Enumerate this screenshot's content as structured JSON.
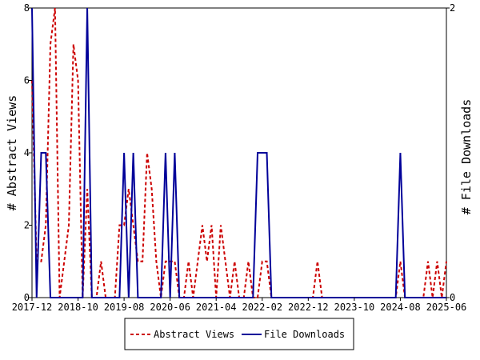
{
  "chart_data": {
    "type": "line",
    "x_start": "2017-12",
    "x_end": "2025-06",
    "x_ticks": [
      "2017-12",
      "2018-10",
      "2019-08",
      "2020-06",
      "2021-04",
      "2022-02",
      "2022-12",
      "2023-10",
      "2024-08",
      "2025-06"
    ],
    "y_left": {
      "label": "# Abstract Views",
      "min": 0,
      "max": 8,
      "ticks": [
        "0",
        "2",
        "4",
        "6",
        "8"
      ]
    },
    "y_right": {
      "label": "# File Downloads",
      "min": 0,
      "max": 2,
      "ticks": [
        "0",
        "2"
      ]
    },
    "legend": {
      "placement": "bottom"
    },
    "series": [
      {
        "name": "Abstract Views",
        "axis": "left",
        "color": "#cc0000",
        "style": "dashed",
        "points": [
          [
            "2017-12",
            6
          ],
          [
            "2018-01",
            1
          ],
          [
            "2018-02",
            1
          ],
          [
            "2018-03",
            2
          ],
          [
            "2018-04",
            7
          ],
          [
            "2018-05",
            8
          ],
          [
            "2018-06",
            0
          ],
          [
            "2018-07",
            1
          ],
          [
            "2018-08",
            2
          ],
          [
            "2018-09",
            7
          ],
          [
            "2018-10",
            6
          ],
          [
            "2018-11",
            0
          ],
          [
            "2018-12",
            3
          ],
          [
            "2019-01",
            0
          ],
          [
            "2019-02",
            0
          ],
          [
            "2019-03",
            1
          ],
          [
            "2019-04",
            0
          ],
          [
            "2019-05",
            0
          ],
          [
            "2019-06",
            0
          ],
          [
            "2019-07",
            2
          ],
          [
            "2019-08",
            2
          ],
          [
            "2019-09",
            3
          ],
          [
            "2019-10",
            2
          ],
          [
            "2019-11",
            1
          ],
          [
            "2019-12",
            1
          ],
          [
            "2020-01",
            4
          ],
          [
            "2020-02",
            3
          ],
          [
            "2020-03",
            1
          ],
          [
            "2020-04",
            0
          ],
          [
            "2020-05",
            1
          ],
          [
            "2020-06",
            1
          ],
          [
            "2020-07",
            1
          ],
          [
            "2020-08",
            0
          ],
          [
            "2020-09",
            0
          ],
          [
            "2020-10",
            1
          ],
          [
            "2020-11",
            0
          ],
          [
            "2020-12",
            1
          ],
          [
            "2021-01",
            2
          ],
          [
            "2021-02",
            1
          ],
          [
            "2021-03",
            2
          ],
          [
            "2021-04",
            0
          ],
          [
            "2021-05",
            2
          ],
          [
            "2021-06",
            1
          ],
          [
            "2021-07",
            0
          ],
          [
            "2021-08",
            1
          ],
          [
            "2021-09",
            0
          ],
          [
            "2021-10",
            0
          ],
          [
            "2021-11",
            1
          ],
          [
            "2021-12",
            0
          ],
          [
            "2022-01",
            0
          ],
          [
            "2022-02",
            1
          ],
          [
            "2022-03",
            1
          ],
          [
            "2022-04",
            0
          ],
          [
            "2022-05",
            0
          ],
          [
            "2022-06",
            0
          ],
          [
            "2022-07",
            0
          ],
          [
            "2022-08",
            0
          ],
          [
            "2022-09",
            0
          ],
          [
            "2022-10",
            0
          ],
          [
            "2022-11",
            0
          ],
          [
            "2022-12",
            0
          ],
          [
            "2023-01",
            0
          ],
          [
            "2023-02",
            1
          ],
          [
            "2023-03",
            0
          ],
          [
            "2023-04",
            0
          ],
          [
            "2023-05",
            0
          ],
          [
            "2023-06",
            0
          ],
          [
            "2023-07",
            0
          ],
          [
            "2023-08",
            0
          ],
          [
            "2023-09",
            0
          ],
          [
            "2023-10",
            0
          ],
          [
            "2023-11",
            0
          ],
          [
            "2023-12",
            0
          ],
          [
            "2024-01",
            0
          ],
          [
            "2024-02",
            0
          ],
          [
            "2024-03",
            0
          ],
          [
            "2024-04",
            0
          ],
          [
            "2024-05",
            0
          ],
          [
            "2024-06",
            0
          ],
          [
            "2024-07",
            0
          ],
          [
            "2024-08",
            1
          ],
          [
            "2024-09",
            0
          ],
          [
            "2024-10",
            0
          ],
          [
            "2024-11",
            0
          ],
          [
            "2024-12",
            0
          ],
          [
            "2025-01",
            0
          ],
          [
            "2025-02",
            1
          ],
          [
            "2025-03",
            0
          ],
          [
            "2025-04",
            1
          ],
          [
            "2025-05",
            0
          ],
          [
            "2025-06",
            1
          ]
        ]
      },
      {
        "name": "File Downloads",
        "axis": "right",
        "color": "#000099",
        "style": "solid",
        "points": [
          [
            "2017-12",
            2
          ],
          [
            "2018-01",
            0
          ],
          [
            "2018-02",
            1
          ],
          [
            "2018-03",
            1
          ],
          [
            "2018-04",
            0
          ],
          [
            "2018-05",
            0
          ],
          [
            "2018-06",
            0
          ],
          [
            "2018-07",
            0
          ],
          [
            "2018-08",
            0
          ],
          [
            "2018-09",
            0
          ],
          [
            "2018-10",
            0
          ],
          [
            "2018-11",
            0
          ],
          [
            "2018-12",
            2
          ],
          [
            "2019-01",
            0
          ],
          [
            "2019-02",
            0
          ],
          [
            "2019-03",
            0
          ],
          [
            "2019-04",
            0
          ],
          [
            "2019-05",
            0
          ],
          [
            "2019-06",
            0
          ],
          [
            "2019-07",
            0
          ],
          [
            "2019-08",
            1
          ],
          [
            "2019-09",
            0
          ],
          [
            "2019-10",
            1
          ],
          [
            "2019-11",
            0
          ],
          [
            "2019-12",
            0
          ],
          [
            "2020-01",
            0
          ],
          [
            "2020-02",
            0
          ],
          [
            "2020-03",
            0
          ],
          [
            "2020-04",
            0
          ],
          [
            "2020-05",
            1
          ],
          [
            "2020-06",
            0
          ],
          [
            "2020-07",
            1
          ],
          [
            "2020-08",
            0
          ],
          [
            "2020-09",
            0
          ],
          [
            "2020-10",
            0
          ],
          [
            "2020-11",
            0
          ],
          [
            "2020-12",
            0
          ],
          [
            "2021-01",
            0
          ],
          [
            "2021-02",
            0
          ],
          [
            "2021-03",
            0
          ],
          [
            "2021-04",
            0
          ],
          [
            "2021-05",
            0
          ],
          [
            "2021-06",
            0
          ],
          [
            "2021-07",
            0
          ],
          [
            "2021-08",
            0
          ],
          [
            "2021-09",
            0
          ],
          [
            "2021-10",
            0
          ],
          [
            "2021-11",
            0
          ],
          [
            "2021-12",
            0
          ],
          [
            "2022-01",
            1
          ],
          [
            "2022-02",
            1
          ],
          [
            "2022-03",
            1
          ],
          [
            "2022-04",
            0
          ],
          [
            "2022-05",
            0
          ],
          [
            "2022-06",
            0
          ],
          [
            "2022-07",
            0
          ],
          [
            "2022-08",
            0
          ],
          [
            "2022-09",
            0
          ],
          [
            "2022-10",
            0
          ],
          [
            "2022-11",
            0
          ],
          [
            "2022-12",
            0
          ],
          [
            "2023-01",
            0
          ],
          [
            "2023-02",
            0
          ],
          [
            "2023-03",
            0
          ],
          [
            "2023-04",
            0
          ],
          [
            "2023-05",
            0
          ],
          [
            "2023-06",
            0
          ],
          [
            "2023-07",
            0
          ],
          [
            "2023-08",
            0
          ],
          [
            "2023-09",
            0
          ],
          [
            "2023-10",
            0
          ],
          [
            "2023-11",
            0
          ],
          [
            "2023-12",
            0
          ],
          [
            "2024-01",
            0
          ],
          [
            "2024-02",
            0
          ],
          [
            "2024-03",
            0
          ],
          [
            "2024-04",
            0
          ],
          [
            "2024-05",
            0
          ],
          [
            "2024-06",
            0
          ],
          [
            "2024-07",
            0
          ],
          [
            "2024-08",
            1
          ],
          [
            "2024-09",
            0
          ],
          [
            "2024-10",
            0
          ],
          [
            "2024-11",
            0
          ],
          [
            "2024-12",
            0
          ],
          [
            "2025-01",
            0
          ],
          [
            "2025-02",
            0
          ],
          [
            "2025-03",
            0
          ],
          [
            "2025-04",
            0
          ],
          [
            "2025-05",
            0
          ],
          [
            "2025-06",
            0
          ]
        ]
      }
    ]
  }
}
